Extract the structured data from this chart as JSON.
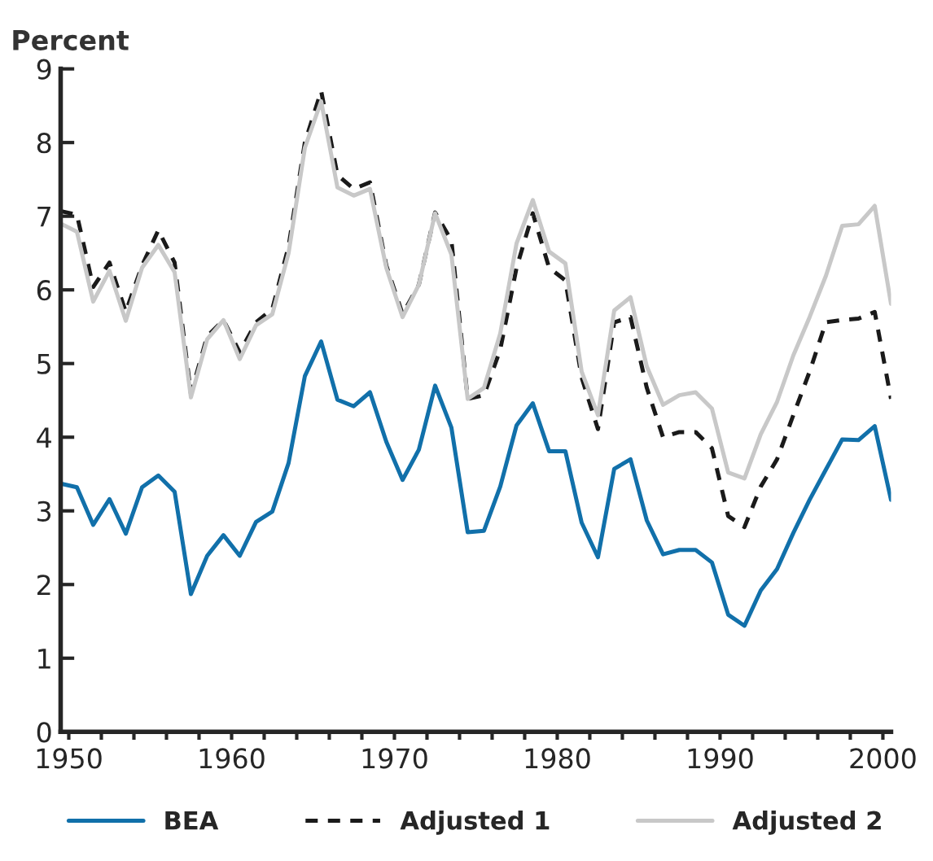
{
  "chart_data": {
    "type": "line",
    "ylabel": "Percent",
    "x": [
      1949.5,
      1950.5,
      1951.5,
      1952.5,
      1953.5,
      1954.5,
      1955.5,
      1956.5,
      1957.5,
      1958.5,
      1959.5,
      1960.5,
      1961.5,
      1962.5,
      1963.5,
      1964.5,
      1965.5,
      1966.5,
      1967.5,
      1968.5,
      1969.5,
      1970.5,
      1971.5,
      1972.5,
      1973.5,
      1974.5,
      1975.5,
      1976.5,
      1977.5,
      1978.5,
      1979.5,
      1980.5,
      1981.5,
      1982.5,
      1983.5,
      1984.5,
      1985.5,
      1986.5,
      1987.5,
      1988.5,
      1989.5,
      1990.5,
      1991.5,
      1992.5,
      1993.5,
      1994.5,
      1995.5,
      1996.5,
      1997.5,
      1998.5,
      1999.5,
      2000.5
    ],
    "series": [
      {
        "name": "BEA",
        "color": "#1170aa",
        "line_style": "solid",
        "values": [
          3.37,
          3.32,
          2.81,
          3.16,
          2.69,
          3.32,
          3.48,
          3.26,
          1.87,
          2.39,
          2.67,
          2.39,
          2.85,
          2.99,
          3.65,
          4.83,
          5.3,
          4.51,
          4.42,
          4.61,
          3.94,
          3.42,
          3.83,
          4.7,
          4.13,
          2.71,
          2.73,
          3.33,
          4.16,
          4.46,
          3.81,
          3.81,
          2.84,
          2.37,
          3.57,
          3.7,
          2.87,
          2.41,
          2.47,
          2.47,
          2.3,
          1.59,
          1.44,
          1.92,
          2.21,
          2.7,
          3.15,
          3.56,
          3.97,
          3.96,
          4.15,
          3.15
        ]
      },
      {
        "name": "Adjusted 1",
        "color": "#1a1a1a",
        "line_style": "dashed",
        "values": [
          7.07,
          7.02,
          6.04,
          6.37,
          5.7,
          6.33,
          6.81,
          6.37,
          4.59,
          5.37,
          5.59,
          5.15,
          5.56,
          5.74,
          6.59,
          8.0,
          8.7,
          7.56,
          7.37,
          7.46,
          6.33,
          5.67,
          6.07,
          7.05,
          6.67,
          4.52,
          4.57,
          5.19,
          6.3,
          7.04,
          6.3,
          6.13,
          4.81,
          4.11,
          5.56,
          5.63,
          4.67,
          4.0,
          4.07,
          4.07,
          3.85,
          2.93,
          2.78,
          3.33,
          3.7,
          4.3,
          4.89,
          5.56,
          5.59,
          5.61,
          5.7,
          4.52
        ]
      },
      {
        "name": "Adjusted 2",
        "color": "#c8c8c8",
        "line_style": "solid",
        "values": [
          6.9,
          6.79,
          5.84,
          6.26,
          5.58,
          6.3,
          6.61,
          6.24,
          4.54,
          5.33,
          5.59,
          5.06,
          5.52,
          5.67,
          6.5,
          7.93,
          8.56,
          7.39,
          7.28,
          7.37,
          6.3,
          5.63,
          6.07,
          7.04,
          6.48,
          4.52,
          4.67,
          5.41,
          6.63,
          7.22,
          6.52,
          6.36,
          4.89,
          4.3,
          5.72,
          5.9,
          4.96,
          4.44,
          4.57,
          4.61,
          4.39,
          3.52,
          3.44,
          4.04,
          4.48,
          5.11,
          5.63,
          6.19,
          6.87,
          6.89,
          7.14,
          5.81
        ]
      }
    ],
    "xlim": [
      1949.5,
      2000.5
    ],
    "ylim": [
      0,
      9
    ],
    "xticks": [
      1950,
      {
        "value": 1952,
        "label": null
      },
      {
        "value": 1954,
        "label": null
      },
      {
        "value": 1956,
        "label": null
      },
      {
        "value": 1958,
        "label": null
      },
      1960,
      {
        "value": 1962,
        "label": null
      },
      {
        "value": 1964,
        "label": null
      },
      {
        "value": 1966,
        "label": null
      },
      {
        "value": 1968,
        "label": null
      },
      1970,
      {
        "value": 1972,
        "label": null
      },
      {
        "value": 1974,
        "label": null
      },
      {
        "value": 1976,
        "label": null
      },
      {
        "value": 1978,
        "label": null
      },
      1980,
      {
        "value": 1982,
        "label": null
      },
      {
        "value": 1984,
        "label": null
      },
      {
        "value": 1986,
        "label": null
      },
      {
        "value": 1988,
        "label": null
      },
      1990,
      {
        "value": 1992,
        "label": null
      },
      {
        "value": 1994,
        "label": null
      },
      {
        "value": 1996,
        "label": null
      },
      {
        "value": 1998,
        "label": null
      },
      2000
    ],
    "yticks": [
      0,
      1,
      2,
      3,
      4,
      5,
      6,
      7,
      8,
      9
    ],
    "grid": false,
    "legend": "bottom",
    "marker": "none"
  }
}
